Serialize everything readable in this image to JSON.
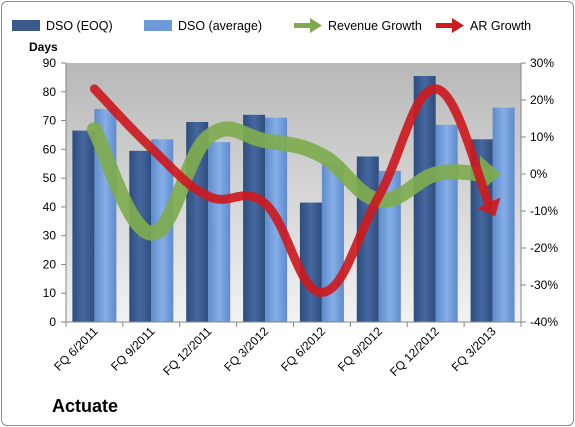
{
  "company": "Actuate",
  "chart_data": {
    "type": "bar",
    "categories": [
      "FQ 6/2011",
      "FQ 9/2011",
      "FQ 12/2011",
      "FQ 3/2012",
      "FQ 6/2012",
      "FQ 9/2012",
      "FQ 12/2012",
      "FQ 3/2013"
    ],
    "series": [
      {
        "name": "DSO (EOQ)",
        "type": "bar",
        "axis": "left",
        "color": "#3b5a8c",
        "values": [
          66.5,
          59.5,
          69.5,
          72,
          41.5,
          57.5,
          85.5,
          63.5
        ]
      },
      {
        "name": "DSO (average)",
        "type": "bar",
        "axis": "left",
        "color": "#6f9ad8",
        "values": [
          74,
          63.5,
          62.5,
          71,
          55.5,
          52.5,
          68.5,
          74.5
        ]
      },
      {
        "name": "Revenue Growth",
        "type": "line-arrow",
        "axis": "right",
        "color": "#7fab4f",
        "values": [
          0.12,
          -0.16,
          0.1,
          0.09,
          0.05,
          -0.07,
          0.0,
          0.0
        ]
      },
      {
        "name": "AR Growth",
        "type": "line-arrow",
        "axis": "right",
        "color": "#cc1a20",
        "values": [
          0.23,
          0.07,
          -0.06,
          -0.08,
          -0.32,
          -0.06,
          0.23,
          -0.1
        ]
      }
    ],
    "y_left": {
      "label": "Days",
      "min": 0,
      "max": 90,
      "step": 10,
      "ticks": [
        "0",
        "10",
        "20",
        "30",
        "40",
        "50",
        "60",
        "70",
        "80",
        "90"
      ]
    },
    "y_right": {
      "min": -0.4,
      "max": 0.3,
      "step": 0.1,
      "ticks": [
        "-40%",
        "-30%",
        "-20%",
        "-10%",
        "0%",
        "10%",
        "20%",
        "30%"
      ]
    },
    "legend_position": "top",
    "grid": false
  }
}
